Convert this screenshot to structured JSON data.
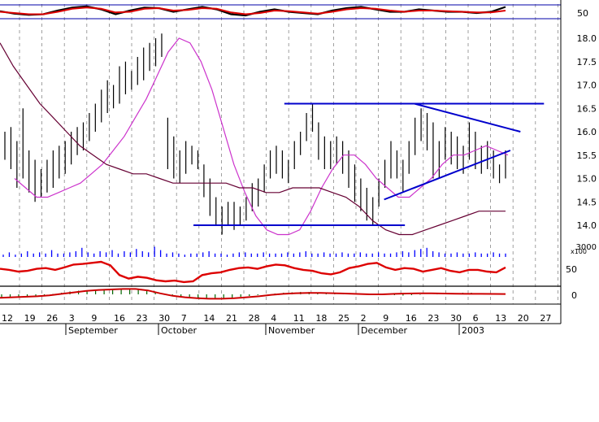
{
  "chart_data": {
    "type": "bar",
    "price_axis": {
      "ylim": [
        13.6,
        18.4
      ],
      "ticks": [
        "14.0",
        "14.5",
        "15.0",
        "15.5",
        "16.0",
        "16.5",
        "17.0",
        "17.5",
        "18.0"
      ]
    },
    "stoch_axis": {
      "tick": "50"
    },
    "volume_axis": {
      "label": "3000",
      "multiplier": "x100"
    },
    "rsi_axis": {
      "tick": "50"
    },
    "macd_axis": {
      "tick": "0"
    },
    "x_ticks": [
      "12",
      "19",
      "26",
      "3",
      "9",
      "16",
      "23",
      "30",
      "7",
      "14",
      "21",
      "28",
      "4",
      "11",
      "18",
      "25",
      "2",
      "9",
      "16",
      "23",
      "30",
      "6",
      "13",
      "20",
      "27"
    ],
    "months": [
      "September",
      "October",
      "November",
      "December",
      "2003"
    ],
    "ohlc_bars": [
      {
        "h": 16.0,
        "l": 15.4
      },
      {
        "h": 16.1,
        "l": 15.2
      },
      {
        "h": 15.8,
        "l": 14.8
      },
      {
        "h": 16.5,
        "l": 15.0
      },
      {
        "h": 15.6,
        "l": 14.7
      },
      {
        "h": 15.4,
        "l": 14.5
      },
      {
        "h": 15.2,
        "l": 14.6
      },
      {
        "h": 15.4,
        "l": 14.7
      },
      {
        "h": 15.6,
        "l": 14.8
      },
      {
        "h": 15.7,
        "l": 15.0
      },
      {
        "h": 15.8,
        "l": 15.1
      },
      {
        "h": 16.0,
        "l": 15.3
      },
      {
        "h": 16.1,
        "l": 15.5
      },
      {
        "h": 16.2,
        "l": 15.6
      },
      {
        "h": 16.4,
        "l": 15.8
      },
      {
        "h": 16.6,
        "l": 16.0
      },
      {
        "h": 16.9,
        "l": 16.2
      },
      {
        "h": 17.1,
        "l": 16.4
      },
      {
        "h": 17.0,
        "l": 16.5
      },
      {
        "h": 17.4,
        "l": 16.6
      },
      {
        "h": 17.5,
        "l": 16.8
      },
      {
        "h": 17.3,
        "l": 16.9
      },
      {
        "h": 17.6,
        "l": 17.0
      },
      {
        "h": 17.8,
        "l": 17.1
      },
      {
        "h": 17.9,
        "l": 17.3
      },
      {
        "h": 18.0,
        "l": 17.4
      },
      {
        "h": 18.1,
        "l": 17.6
      },
      {
        "h": 16.3,
        "l": 15.2
      },
      {
        "h": 15.9,
        "l": 15.0
      },
      {
        "h": 15.6,
        "l": 14.9
      },
      {
        "h": 15.8,
        "l": 15.1
      },
      {
        "h": 15.7,
        "l": 15.3
      },
      {
        "h": 15.6,
        "l": 15.2
      },
      {
        "h": 15.3,
        "l": 14.6
      },
      {
        "h": 15.0,
        "l": 14.2
      },
      {
        "h": 14.6,
        "l": 14.0
      },
      {
        "h": 14.4,
        "l": 13.8
      },
      {
        "h": 14.5,
        "l": 14.0
      },
      {
        "h": 14.5,
        "l": 13.9
      },
      {
        "h": 14.4,
        "l": 14.0
      },
      {
        "h": 14.6,
        "l": 14.1
      },
      {
        "h": 14.9,
        "l": 14.3
      },
      {
        "h": 15.0,
        "l": 14.4
      },
      {
        "h": 15.3,
        "l": 14.7
      },
      {
        "h": 15.6,
        "l": 15.0
      },
      {
        "h": 15.7,
        "l": 15.1
      },
      {
        "h": 15.6,
        "l": 15.0
      },
      {
        "h": 15.4,
        "l": 14.9
      },
      {
        "h": 15.8,
        "l": 15.2
      },
      {
        "h": 16.0,
        "l": 15.5
      },
      {
        "h": 16.4,
        "l": 15.8
      },
      {
        "h": 16.6,
        "l": 16.0
      },
      {
        "h": 16.2,
        "l": 15.4
      },
      {
        "h": 15.9,
        "l": 15.2
      },
      {
        "h": 15.8,
        "l": 15.2
      },
      {
        "h": 15.9,
        "l": 15.3
      },
      {
        "h": 15.8,
        "l": 15.1
      },
      {
        "h": 15.6,
        "l": 14.8
      },
      {
        "h": 15.3,
        "l": 14.5
      },
      {
        "h": 15.0,
        "l": 14.3
      },
      {
        "h": 14.8,
        "l": 14.1
      },
      {
        "h": 14.6,
        "l": 14.0
      },
      {
        "h": 15.0,
        "l": 14.4
      },
      {
        "h": 15.4,
        "l": 14.8
      },
      {
        "h": 15.8,
        "l": 15.0
      },
      {
        "h": 15.6,
        "l": 15.0
      },
      {
        "h": 15.4,
        "l": 14.7
      },
      {
        "h": 15.8,
        "l": 15.1
      },
      {
        "h": 16.3,
        "l": 15.5
      },
      {
        "h": 16.5,
        "l": 15.8
      },
      {
        "h": 16.4,
        "l": 15.6
      },
      {
        "h": 16.2,
        "l": 15.0
      },
      {
        "h": 15.8,
        "l": 15.0
      },
      {
        "h": 16.1,
        "l": 15.4
      },
      {
        "h": 16.0,
        "l": 15.3
      },
      {
        "h": 15.9,
        "l": 15.2
      },
      {
        "h": 15.7,
        "l": 15.1
      },
      {
        "h": 16.2,
        "l": 15.4
      },
      {
        "h": 16.0,
        "l": 15.2
      },
      {
        "h": 15.7,
        "l": 15.1
      },
      {
        "h": 15.8,
        "l": 15.2
      },
      {
        "h": 15.6,
        "l": 15.0
      },
      {
        "h": 15.3,
        "l": 14.9
      },
      {
        "h": 15.6,
        "l": 15.0
      }
    ],
    "ma_short": [
      15.0,
      14.8,
      14.6,
      14.6,
      14.7,
      14.8,
      14.9,
      15.1,
      15.3,
      15.6,
      15.9,
      16.3,
      16.7,
      17.2,
      17.7,
      18.0,
      17.9,
      17.5,
      16.9,
      16.1,
      15.3,
      14.7,
      14.2,
      13.9,
      13.8,
      13.8,
      13.9,
      14.3,
      14.8,
      15.2,
      15.5,
      15.5,
      15.3,
      15.0,
      14.8,
      14.6,
      14.6,
      14.8,
      15.0,
      15.3,
      15.5,
      15.5,
      15.6,
      15.7,
      15.6,
      15.5
    ],
    "ma_long": [
      17.9,
      17.4,
      17.0,
      16.6,
      16.3,
      16.0,
      15.7,
      15.5,
      15.3,
      15.2,
      15.1,
      15.1,
      15.0,
      14.9,
      14.9,
      14.9,
      14.9,
      14.9,
      14.8,
      14.8,
      14.7,
      14.7,
      14.8,
      14.8,
      14.8,
      14.7,
      14.6,
      14.4,
      14.1,
      13.9,
      13.8,
      13.8,
      13.9,
      14.0,
      14.1,
      14.2,
      14.3,
      14.3,
      14.3
    ],
    "trendlines": [
      {
        "x1": 0.507,
        "y1": 16.6,
        "x2": 0.97,
        "y2": 16.6
      },
      {
        "x1": 0.739,
        "y1": 16.6,
        "x2": 0.928,
        "y2": 16.0
      },
      {
        "x1": 0.685,
        "y1": 14.55,
        "x2": 0.91,
        "y2": 15.6
      },
      {
        "x1": 0.345,
        "y1": 14.0,
        "x2": 0.722,
        "y2": 14.0
      }
    ],
    "stoch_k": [
      0.55,
      0.35,
      0.25,
      0.3,
      0.6,
      0.85,
      0.95,
      0.7,
      0.3,
      0.6,
      0.85,
      0.8,
      0.5,
      0.7,
      0.9,
      0.7,
      0.3,
      0.2,
      0.5,
      0.7,
      0.5,
      0.4,
      0.3,
      0.6,
      0.8,
      0.9,
      0.7,
      0.5,
      0.5,
      0.7,
      0.6,
      0.5,
      0.5,
      0.4,
      0.5,
      0.9
    ],
    "stoch_d": [
      0.5,
      0.4,
      0.3,
      0.3,
      0.5,
      0.75,
      0.85,
      0.75,
      0.45,
      0.5,
      0.75,
      0.8,
      0.6,
      0.65,
      0.8,
      0.75,
      0.45,
      0.3,
      0.4,
      0.6,
      0.55,
      0.45,
      0.35,
      0.5,
      0.7,
      0.8,
      0.75,
      0.6,
      0.5,
      0.6,
      0.6,
      0.55,
      0.5,
      0.45,
      0.45,
      0.6
    ],
    "volume": [
      0.2,
      0.4,
      0.2,
      0.3,
      0.5,
      0.3,
      0.4,
      0.3,
      0.6,
      0.3,
      0.3,
      0.4,
      0.5,
      0.8,
      0.4,
      0.3,
      0.5,
      0.4,
      0.6,
      0.3,
      0.5,
      0.4,
      0.7,
      0.5,
      0.4,
      0.9,
      0.6,
      0.3,
      0.4,
      0.3,
      0.2,
      0.3,
      0.3,
      0.4,
      0.5,
      0.3,
      0.3,
      0.2,
      0.3,
      0.4,
      0.4,
      0.3,
      0.3,
      0.4,
      0.3,
      0.3,
      0.3,
      0.4,
      0.3,
      0.4,
      0.5,
      0.3,
      0.3,
      0.4,
      0.3,
      0.3,
      0.4,
      0.3,
      0.3,
      0.4,
      0.3,
      0.3,
      0.4,
      0.3,
      0.3,
      0.4,
      0.5,
      0.4,
      0.6,
      0.7,
      0.8,
      0.5,
      0.4,
      0.3,
      0.3,
      0.4,
      0.3,
      0.3,
      0.4,
      0.3,
      0.3,
      0.4,
      0.3,
      0.3
    ],
    "rsi": [
      58,
      55,
      50,
      52,
      58,
      60,
      55,
      62,
      70,
      72,
      75,
      78,
      68,
      40,
      30,
      35,
      32,
      25,
      22,
      24,
      20,
      22,
      40,
      45,
      48,
      55,
      60,
      62,
      58,
      65,
      70,
      68,
      60,
      55,
      52,
      45,
      42,
      48,
      60,
      65,
      72,
      75,
      62,
      55,
      60,
      58,
      50,
      55,
      60,
      52,
      48,
      55,
      55,
      50,
      48,
      62
    ],
    "macd_hist": [
      -0.4,
      -0.35,
      -0.3,
      -0.25,
      -0.2,
      -0.1,
      0.05,
      0.2,
      0.35,
      0.45,
      0.5,
      0.55,
      0.6,
      0.65,
      0.7,
      0.7,
      0.6,
      0.4,
      0.2,
      0.0,
      -0.2,
      -0.35,
      -0.45,
      -0.5,
      -0.55,
      -0.5,
      -0.45,
      -0.4,
      -0.3,
      -0.2,
      -0.1,
      0.0,
      0.1,
      0.2,
      0.25,
      0.3,
      0.3,
      0.25,
      0.2,
      0.15,
      0.1,
      0.1,
      0.05,
      0.0,
      0.0,
      -0.05,
      -0.1,
      -0.15,
      -0.1,
      -0.05,
      0.0,
      0.05,
      0.1,
      0.15,
      0.2,
      0.2,
      0.15,
      0.1,
      0.05,
      0.0
    ],
    "macd_line": [
      -0.35,
      -0.3,
      -0.25,
      -0.2,
      -0.1,
      0.05,
      0.2,
      0.35,
      0.45,
      0.5,
      0.55,
      0.55,
      0.4,
      0.1,
      -0.15,
      -0.3,
      -0.4,
      -0.45,
      -0.45,
      -0.4,
      -0.3,
      -0.2,
      -0.05,
      0.05,
      0.12,
      0.15,
      0.15,
      0.12,
      0.08,
      0.04,
      0.0,
      0.0,
      0.05,
      0.08,
      0.1,
      0.1,
      0.08,
      0.06,
      0.05,
      0.05,
      0.04,
      0.03
    ],
    "colors": {
      "bars": "#000000",
      "trend": "#0000cc",
      "ma_short": "#cc33cc",
      "ma_long": "#660033",
      "stoch_k": "#000000",
      "stoch_d": "#dd0000",
      "volume": "#0000ff",
      "rsi": "#dd0000",
      "macd_hist": "#006600",
      "macd_line": "#cc0000",
      "grid": "#888888"
    }
  }
}
